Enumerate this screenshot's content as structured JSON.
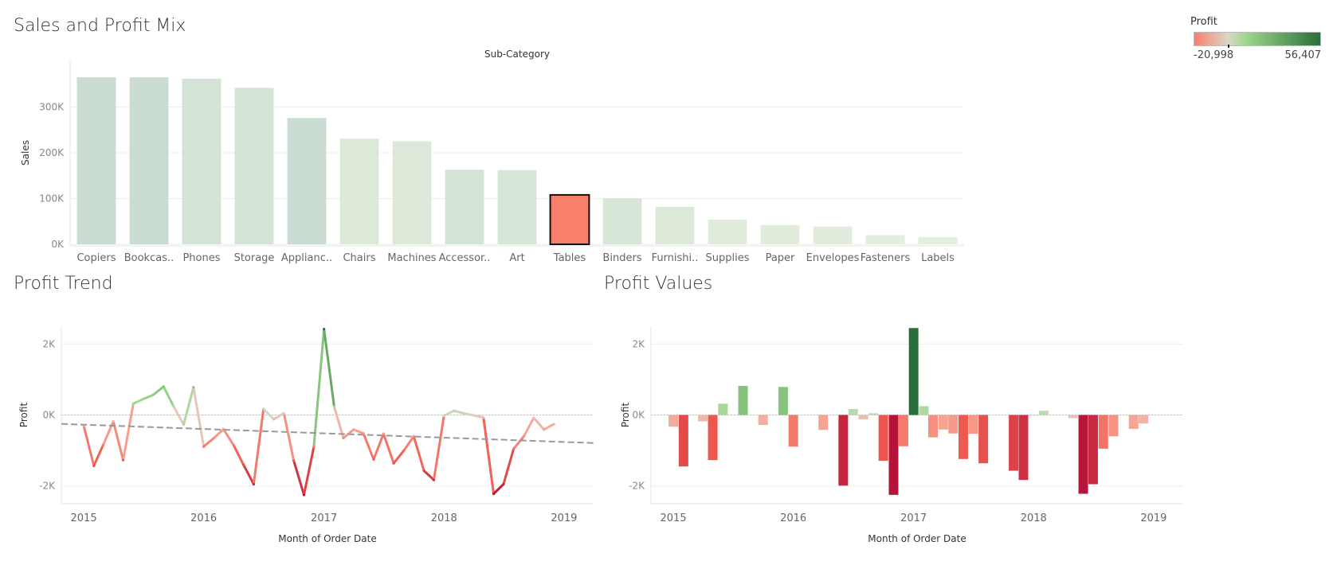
{
  "titles": {
    "top": "Sales and Profit Mix",
    "trend": "Profit Trend",
    "values": "Profit Values"
  },
  "legend": {
    "title": "Profit",
    "min_label": "-20,998",
    "max_label": "56,407",
    "min": -20998,
    "max": 56407,
    "colors": [
      "#f8806a",
      "#dcd6cc",
      "#9fd98e",
      "#2b6e3c"
    ]
  },
  "colors": {
    "highlight_bar": "#f8806a",
    "highlight_border": "#111111",
    "trend_line": "#999999",
    "grid": "#eeeeee"
  },
  "chart_data": [
    {
      "id": "sales_by_subcategory",
      "type": "bar",
      "column_header": "Sub-Category",
      "ylabel": "Sales",
      "ylim": [
        0,
        400000
      ],
      "yticks": [
        0,
        100000,
        200000,
        300000
      ],
      "ytick_labels": [
        "0K",
        "100K",
        "200K",
        "300K"
      ],
      "highlighted": "Tables",
      "categories": [
        "Copiers",
        "Bookcas..",
        "Phones",
        "Storage",
        "Applianc..",
        "Chairs",
        "Machines",
        "Accessor..",
        "Art",
        "Tables",
        "Binders",
        "Furnishi..",
        "Supplies",
        "Paper",
        "Envelopes",
        "Fasteners",
        "Labels"
      ],
      "values": [
        365000,
        365000,
        362000,
        342000,
        276000,
        231000,
        225000,
        163000,
        162000,
        108000,
        101000,
        82000,
        54000,
        42000,
        39000,
        20000,
        16000
      ],
      "colors": [
        "#cbdcd2",
        "#cbdcd2",
        "#d3e3d6",
        "#d3e3d6",
        "#cbdcd2",
        "#dce8d8",
        "#dce8d8",
        "#d3e3d6",
        "#d8e6d7",
        "#f8806a",
        "#d8e6d7",
        "#dce8d8",
        "#e1ecdd",
        "#e1ecdd",
        "#e1ecdd",
        "#e3ede0",
        "#e3ede0"
      ]
    },
    {
      "id": "profit_trend",
      "type": "line",
      "xlabel": "Month of Order Date",
      "ylabel": "Profit",
      "xlim": [
        "2014-10-25",
        "2019-04-01"
      ],
      "ylim": [
        -2500,
        2500
      ],
      "yticks": [
        -2000,
        0,
        2000
      ],
      "ytick_labels": [
        "-2K",
        "0K",
        "2K"
      ],
      "xtick_labels": [
        "2015",
        "2016",
        "2017",
        "2018",
        "2019"
      ],
      "xtick_dates": [
        "2015-01-01",
        "2016-01-01",
        "2017-01-01",
        "2018-01-01",
        "2019-01-01"
      ],
      "x": [
        "2015-01-01",
        "2015-02-01",
        "2015-03-01",
        "2015-04-01",
        "2015-05-01",
        "2015-06-01",
        "2015-07-01",
        "2015-08-01",
        "2015-09-01",
        "2015-10-01",
        "2015-11-01",
        "2015-12-01",
        "2016-01-01",
        "2016-02-01",
        "2016-03-01",
        "2016-04-01",
        "2016-05-01",
        "2016-06-01",
        "2016-07-01",
        "2016-08-01",
        "2016-09-01",
        "2016-10-01",
        "2016-11-01",
        "2016-12-01",
        "2017-01-01",
        "2017-02-01",
        "2017-03-01",
        "2017-04-01",
        "2017-05-01",
        "2017-06-01",
        "2017-07-01",
        "2017-08-01",
        "2017-09-01",
        "2017-10-01",
        "2017-11-01",
        "2017-12-01",
        "2018-01-01",
        "2018-02-01",
        "2018-03-01",
        "2018-04-01",
        "2018-05-01",
        "2018-06-01",
        "2018-07-01",
        "2018-08-01",
        "2018-09-01",
        "2018-10-01",
        "2018-11-01",
        "2018-12-01"
      ],
      "values": [
        -300,
        -1430,
        -850,
        -180,
        -1270,
        320,
        450,
        570,
        800,
        250,
        -270,
        780,
        -890,
        -650,
        -400,
        -850,
        -1400,
        -1950,
        170,
        -120,
        50,
        -1290,
        -2250,
        -900,
        2420,
        230,
        -650,
        -410,
        -520,
        -1250,
        -530,
        -1360,
        -1000,
        -600,
        -1570,
        -1830,
        -20,
        120,
        50,
        -10,
        -70,
        -2220,
        -1950,
        -950,
        -600,
        -80,
        -410,
        -260
      ],
      "trend": {
        "start": -250,
        "end": -790
      }
    },
    {
      "id": "profit_values",
      "type": "bar",
      "xlabel": "Month of Order Date",
      "ylabel": "Profit",
      "xlim": [
        "2014-10-25",
        "2019-04-01"
      ],
      "ylim": [
        -2500,
        2500
      ],
      "yticks": [
        -2000,
        0,
        2000
      ],
      "ytick_labels": [
        "-2K",
        "0K",
        "2K"
      ],
      "xtick_labels": [
        "2015",
        "2016",
        "2017",
        "2018",
        "2019"
      ],
      "xtick_dates": [
        "2015-01-01",
        "2016-01-01",
        "2017-01-01",
        "2018-01-01",
        "2019-01-01"
      ],
      "x": [
        "2015-01-01",
        "2015-02-01",
        "2015-03-01",
        "2015-04-01",
        "2015-05-01",
        "2015-06-01",
        "2015-07-01",
        "2015-08-01",
        "2015-09-01",
        "2015-10-01",
        "2015-11-01",
        "2015-12-01",
        "2016-01-01",
        "2016-02-01",
        "2016-03-01",
        "2016-04-01",
        "2016-05-01",
        "2016-06-01",
        "2016-07-01",
        "2016-08-01",
        "2016-09-01",
        "2016-10-01",
        "2016-11-01",
        "2016-12-01",
        "2017-01-01",
        "2017-02-01",
        "2017-03-01",
        "2017-04-01",
        "2017-05-01",
        "2017-06-01",
        "2017-07-01",
        "2017-08-01",
        "2017-09-01",
        "2017-10-01",
        "2017-11-01",
        "2017-12-01",
        "2018-01-01",
        "2018-02-01",
        "2018-03-01",
        "2018-04-01",
        "2018-05-01",
        "2018-06-01",
        "2018-07-01",
        "2018-08-01",
        "2018-09-01",
        "2018-10-01",
        "2018-11-01",
        "2018-12-01"
      ],
      "values": [
        -330,
        -1450,
        0,
        -180,
        -1270,
        320,
        0,
        820,
        0,
        -280,
        0,
        790,
        -890,
        0,
        0,
        -420,
        0,
        -1990,
        170,
        -120,
        50,
        -1290,
        -2250,
        -880,
        2450,
        250,
        -630,
        -410,
        -520,
        -1240,
        -530,
        -1360,
        0,
        0,
        -1570,
        -1830,
        -20,
        120,
        0,
        0,
        -90,
        -2220,
        -1950,
        -950,
        -600,
        0,
        -390,
        -240
      ]
    }
  ]
}
